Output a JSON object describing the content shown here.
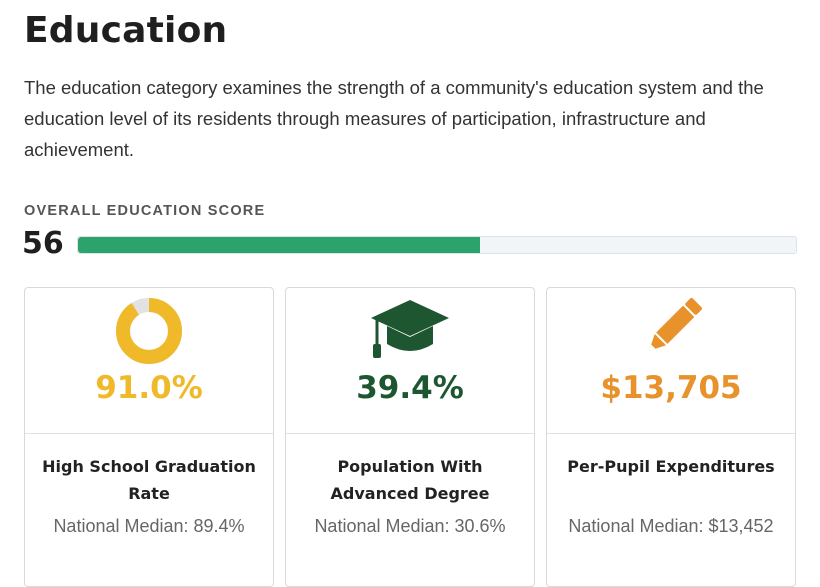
{
  "header": {
    "title": "Education",
    "description": "The education category examines the strength of a community's education system and the education level of its residents through measures of participation, infrastructure and achievement."
  },
  "overall": {
    "label": "OVERALL EDUCATION SCORE",
    "score": "56",
    "score_fraction": 0.56,
    "bar_color": "#2ba36b"
  },
  "cards": [
    {
      "icon": "donut-chart-icon",
      "value": "91.0%",
      "value_fraction": 0.91,
      "color": "#f0b92a",
      "label": "High School Graduation Rate",
      "median": "National Median: 89.4%"
    },
    {
      "icon": "graduation-cap-icon",
      "value": "39.4%",
      "color": "#1e5631",
      "label": "Population With Advanced Degree",
      "median": "National Median: 30.6%"
    },
    {
      "icon": "pencil-icon",
      "value": "$13,705",
      "color": "#e8922b",
      "label": "Per-Pupil Expenditures",
      "median": "National Median: $13,452"
    }
  ]
}
